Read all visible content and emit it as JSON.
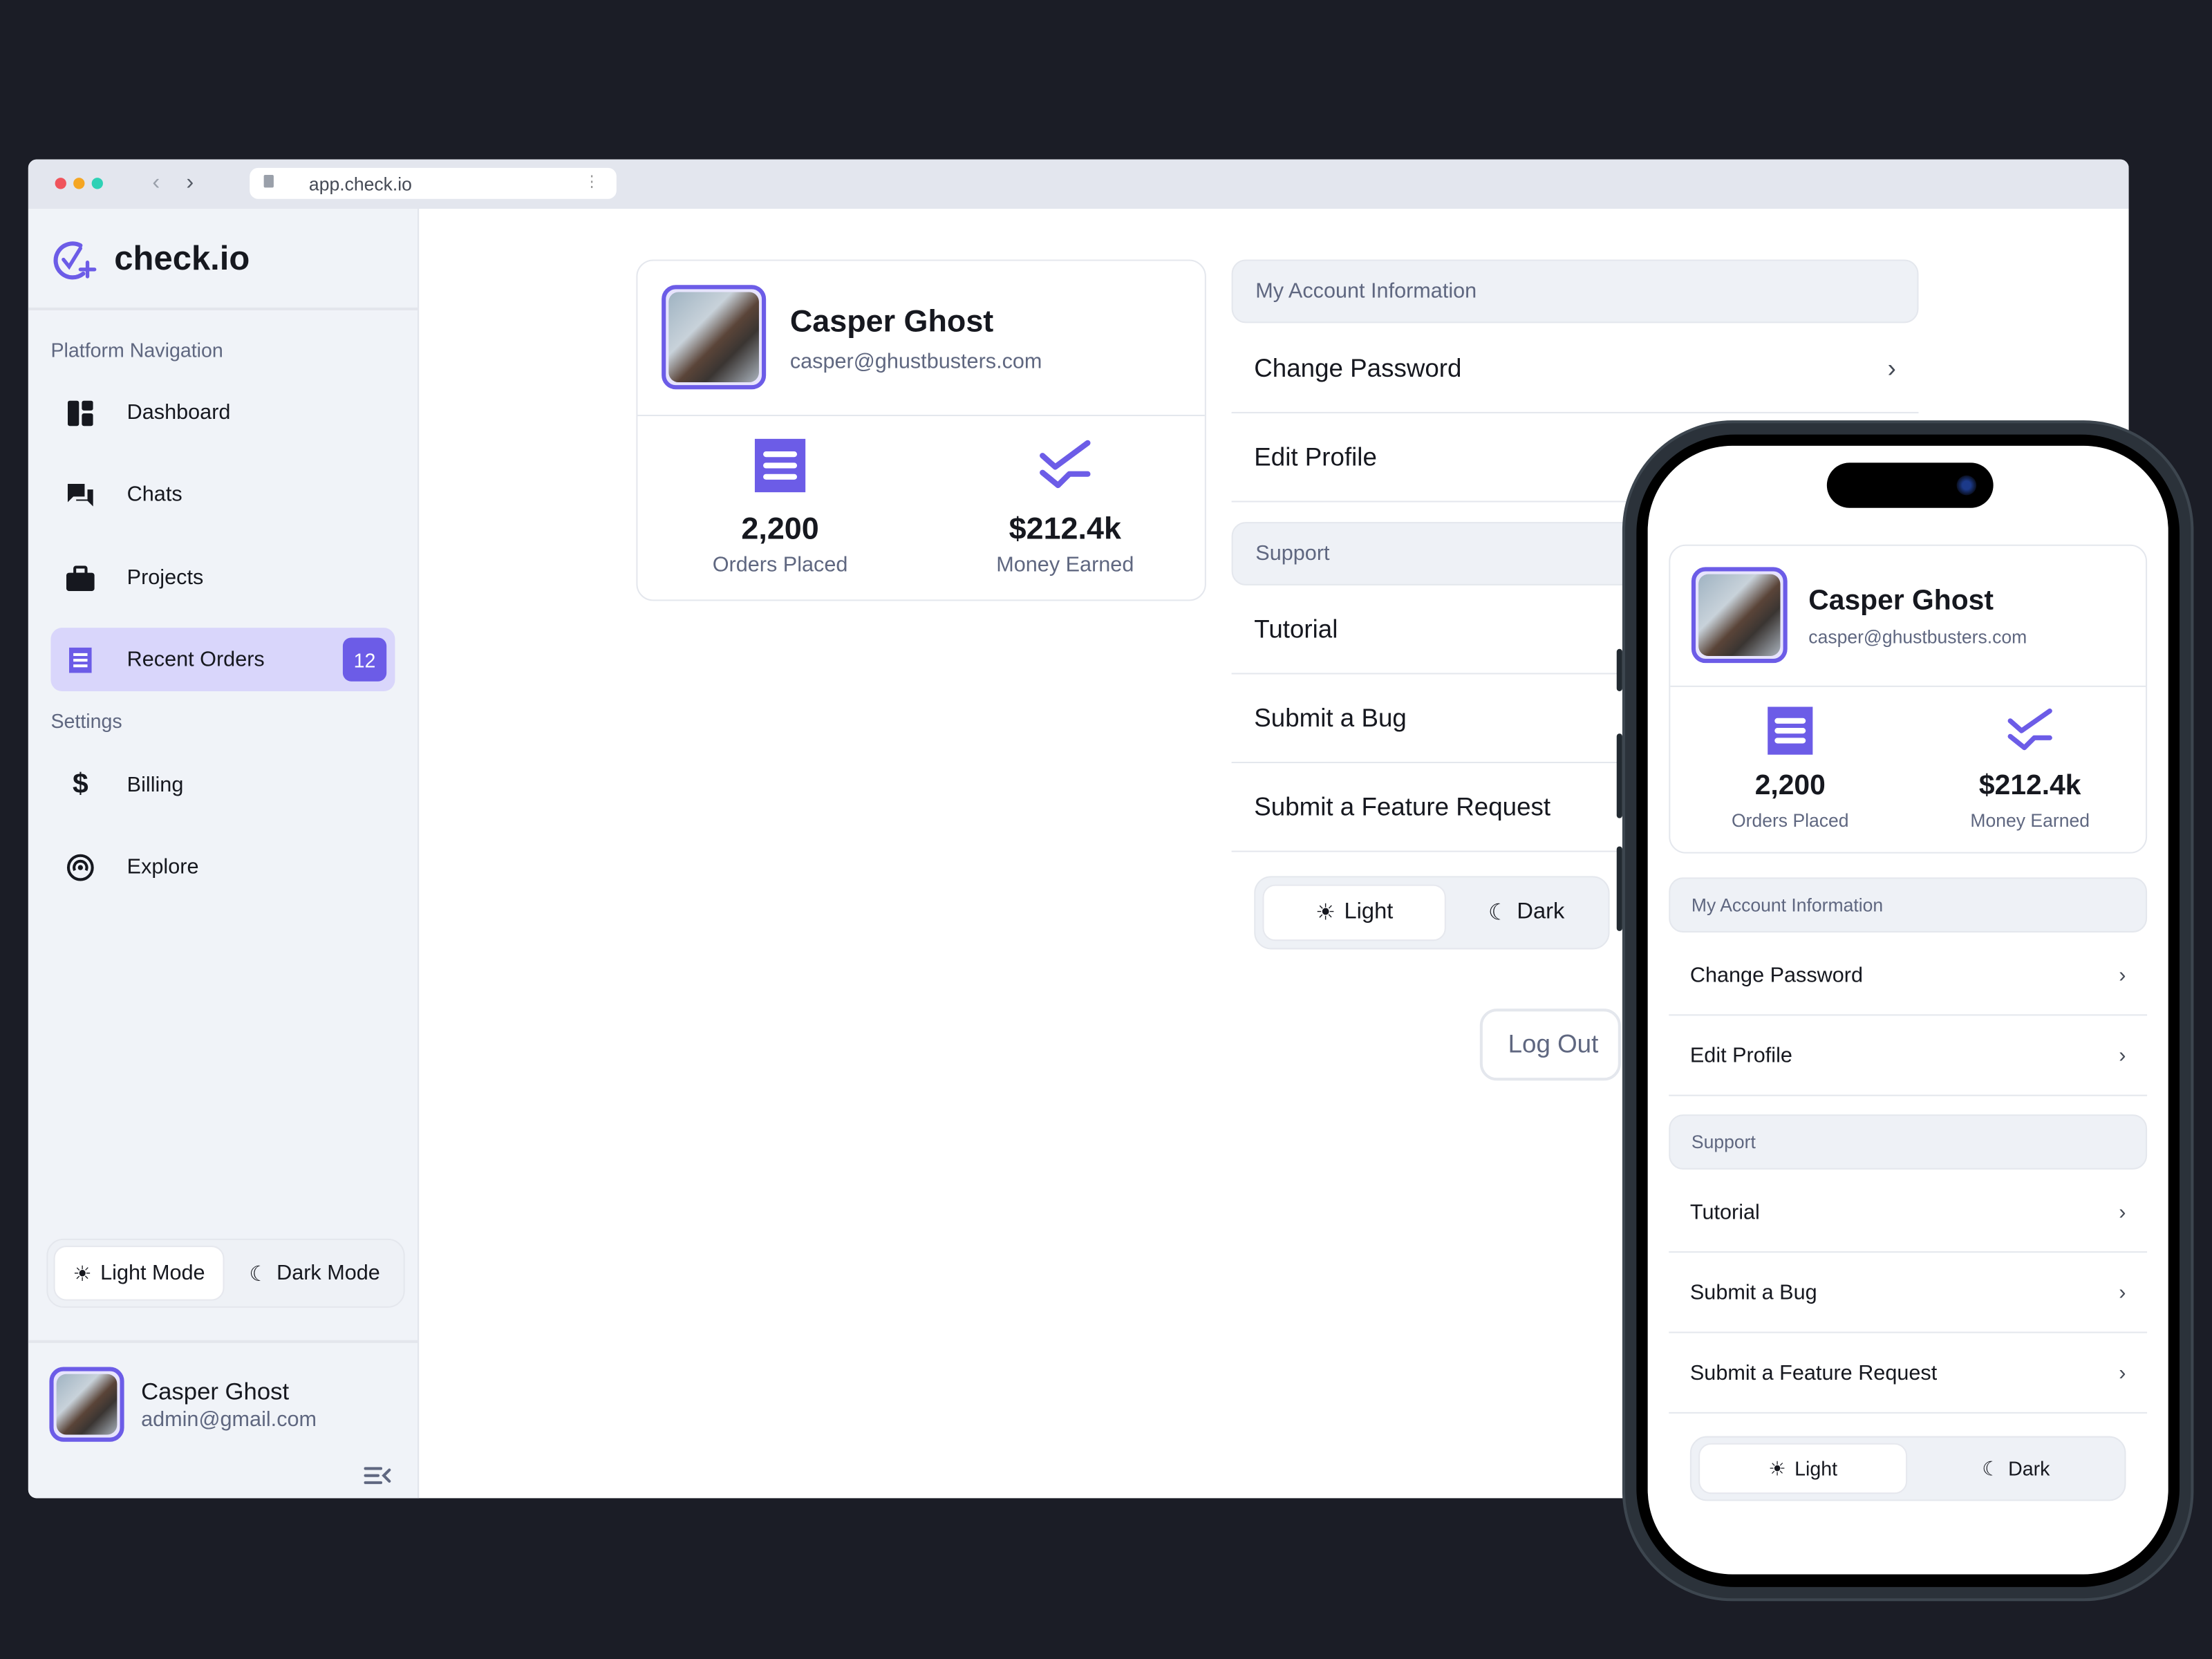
{
  "browser": {
    "url": "app.check.io",
    "traffic_lights": [
      "#f0545c",
      "#f5a623",
      "#2ed1b5"
    ]
  },
  "brand": {
    "name": "check.io",
    "accent": "#6c5ce7"
  },
  "sidebar": {
    "section_nav": "Platform Navigation",
    "items": [
      {
        "label": "Dashboard",
        "icon": "dashboard-icon"
      },
      {
        "label": "Chats",
        "icon": "chat-icon"
      },
      {
        "label": "Projects",
        "icon": "briefcase-icon"
      },
      {
        "label": "Recent Orders",
        "icon": "receipt-icon",
        "badge": "12",
        "active": true
      }
    ],
    "section_settings": "Settings",
    "settings_items": [
      {
        "label": "Billing",
        "icon": "dollar-icon"
      },
      {
        "label": "Explore",
        "icon": "broadcast-icon"
      }
    ],
    "mode": {
      "light": "Light Mode",
      "dark": "Dark Mode",
      "selected": "light"
    },
    "user": {
      "name": "Casper Ghost",
      "email": "admin@gmail.com"
    }
  },
  "profile": {
    "name": "Casper Ghost",
    "email": "casper@ghustbusters.com",
    "stats": [
      {
        "value": "2,200",
        "label": "Orders Placed",
        "icon": "receipt-icon"
      },
      {
        "value": "$212.4k",
        "label": "Money Earned",
        "icon": "activity-icon"
      }
    ]
  },
  "account": {
    "header": "My Account Information",
    "items": [
      "Change Password",
      "Edit Profile"
    ],
    "support_header": "Support",
    "support_items": [
      "Tutorial",
      "Submit a Bug",
      "Submit a Feature Request"
    ],
    "theme": {
      "light": "Light",
      "dark": "Dark",
      "selected": "light"
    },
    "logout": "Log Out"
  }
}
